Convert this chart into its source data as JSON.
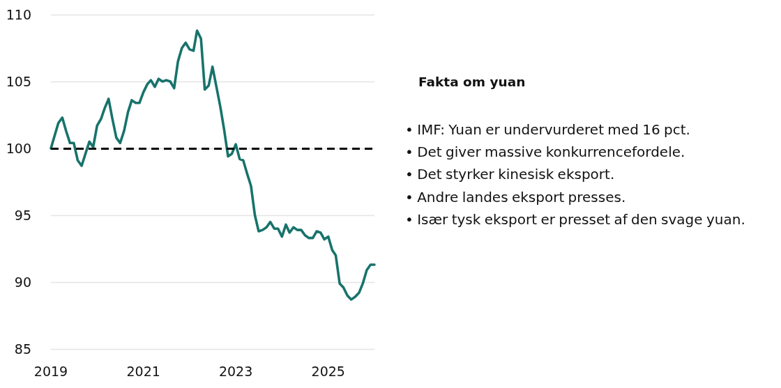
{
  "chart_data": [
    {
      "type": "line",
      "x": [
        "2019-01",
        "2019-02",
        "2019-03",
        "2019-04",
        "2019-05",
        "2019-06",
        "2019-07",
        "2019-08",
        "2019-09",
        "2019-10",
        "2019-11",
        "2019-12",
        "2020-01",
        "2020-02",
        "2020-03",
        "2020-04",
        "2020-05",
        "2020-06",
        "2020-07",
        "2020-08",
        "2020-09",
        "2020-10",
        "2020-11",
        "2020-12",
        "2021-01",
        "2021-02",
        "2021-03",
        "2021-04",
        "2021-05",
        "2021-06",
        "2021-07",
        "2021-08",
        "2021-09",
        "2021-10",
        "2021-11",
        "2021-12",
        "2022-01",
        "2022-02",
        "2022-03",
        "2022-04",
        "2022-05",
        "2022-06",
        "2022-07",
        "2022-08",
        "2022-09",
        "2022-10",
        "2022-11",
        "2022-12",
        "2023-01",
        "2023-02",
        "2023-03",
        "2023-04",
        "2023-05",
        "2023-06",
        "2023-07",
        "2023-08",
        "2023-09",
        "2023-10",
        "2023-11",
        "2023-12",
        "2024-01",
        "2024-02",
        "2024-03",
        "2024-04",
        "2024-05",
        "2024-06",
        "2024-07",
        "2024-08",
        "2024-09",
        "2024-10",
        "2024-11",
        "2024-12",
        "2025-01",
        "2025-02",
        "2025-03",
        "2025-04",
        "2025-05",
        "2025-06",
        "2025-07",
        "2025-08",
        "2025-09",
        "2025-10",
        "2025-11",
        "2025-12",
        "2026-01"
      ],
      "series": [
        {
          "color": "#17736b",
          "values": [
            100.0,
            101.0,
            101.9,
            102.3,
            101.3,
            100.4,
            100.4,
            99.1,
            98.7,
            99.6,
            100.5,
            100.1,
            101.7,
            102.2,
            103.0,
            103.7,
            102.2,
            100.8,
            100.4,
            101.3,
            102.7,
            103.6,
            103.4,
            103.4,
            104.2,
            104.8,
            105.1,
            104.6,
            105.2,
            105.0,
            105.1,
            105.0,
            104.5,
            106.5,
            107.5,
            107.9,
            107.4,
            107.3,
            108.8,
            108.2,
            104.4,
            104.7,
            106.1,
            104.6,
            103.1,
            101.4,
            99.4,
            99.6,
            100.3,
            99.2,
            99.1,
            98.1,
            97.2,
            95.0,
            93.8,
            93.9,
            94.1,
            94.5,
            94.0,
            94.0,
            93.4,
            94.3,
            93.7,
            94.1,
            93.9,
            93.9,
            93.5,
            93.3,
            93.3,
            93.8,
            93.7,
            93.2,
            93.4,
            92.4,
            92.0,
            89.9,
            89.6,
            89.0,
            88.7,
            88.9,
            89.2,
            89.9,
            90.9,
            91.3,
            91.3
          ]
        }
      ],
      "xlim": [
        "2019-01",
        "2026-01"
      ],
      "xticks": [
        "2019",
        "2021",
        "2023",
        "2025"
      ],
      "ylim": [
        85,
        110
      ],
      "yticks": [
        85,
        90,
        95,
        100,
        105,
        110
      ],
      "grid": "y",
      "marker": "none",
      "line_style": "solid",
      "ref_lines": [
        {
          "axis": "y",
          "value": 100,
          "color": "#000000",
          "line_style": "dashed"
        }
      ]
    },
    {
      "type": "other",
      "title": "Fakta om yuan",
      "annotations": [
        "• IMF: Yuan er undervurderet med 16 pct.",
        "• Det giver massive konkurrencefordele.",
        "• Det styrker kinesisk eksport.",
        "• Andre landes eksport presses.",
        "• Især tysk eksport er presset af den svage yuan."
      ]
    }
  ]
}
